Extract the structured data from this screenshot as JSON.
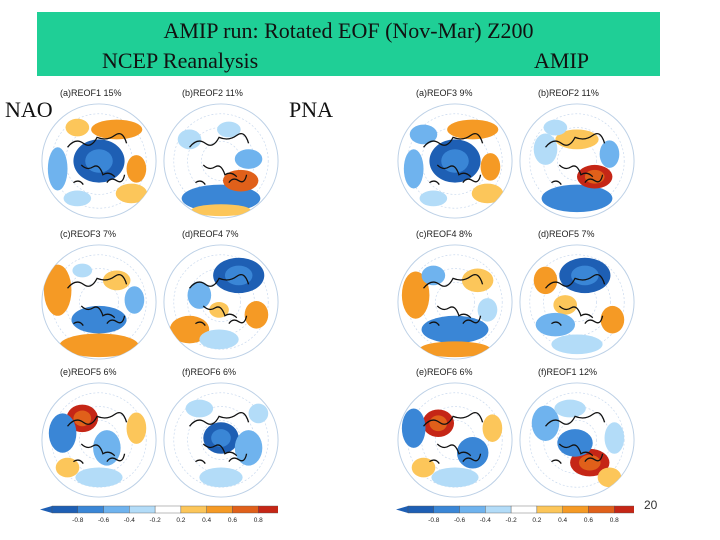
{
  "header": {
    "title": "AMIP run: Rotated EOF (Nov-Mar) Z200",
    "left_subtitle": "NCEP Reanalysis",
    "right_subtitle": "AMIP"
  },
  "labels": {
    "nao": "NAO",
    "pna": "PNA"
  },
  "panels": {
    "ncep": [
      {
        "label": "(a)REOF1  15%"
      },
      {
        "label": "(b)REOF2  11%"
      },
      {
        "label": "(c)REOF3  7%"
      },
      {
        "label": "(d)REOF4  7%"
      },
      {
        "label": "(e)REOF5  6%"
      },
      {
        "label": "(f)REOF6  6%"
      }
    ],
    "amip": [
      {
        "label": "(a)REOF3  9%"
      },
      {
        "label": "(b)REOF2  11%"
      },
      {
        "label": "(c)REOF4  8%"
      },
      {
        "label": "(d)REOF5  7%"
      },
      {
        "label": "(e)REOF6  6%"
      },
      {
        "label": "(f)REOF1  12%"
      }
    ]
  },
  "colorbar": {
    "ticks": [
      "-0.8",
      "-0.6",
      "-0.4",
      "-0.2",
      "0.2",
      "0.4",
      "0.6",
      "0.8"
    ],
    "colors": [
      "#1e5fb4",
      "#3a86d6",
      "#6fb3ee",
      "#b3dcf8",
      "#ffffff",
      "#fcc65a",
      "#f59a25",
      "#e0601a",
      "#c52616"
    ]
  },
  "slide": {
    "number": "20"
  }
}
